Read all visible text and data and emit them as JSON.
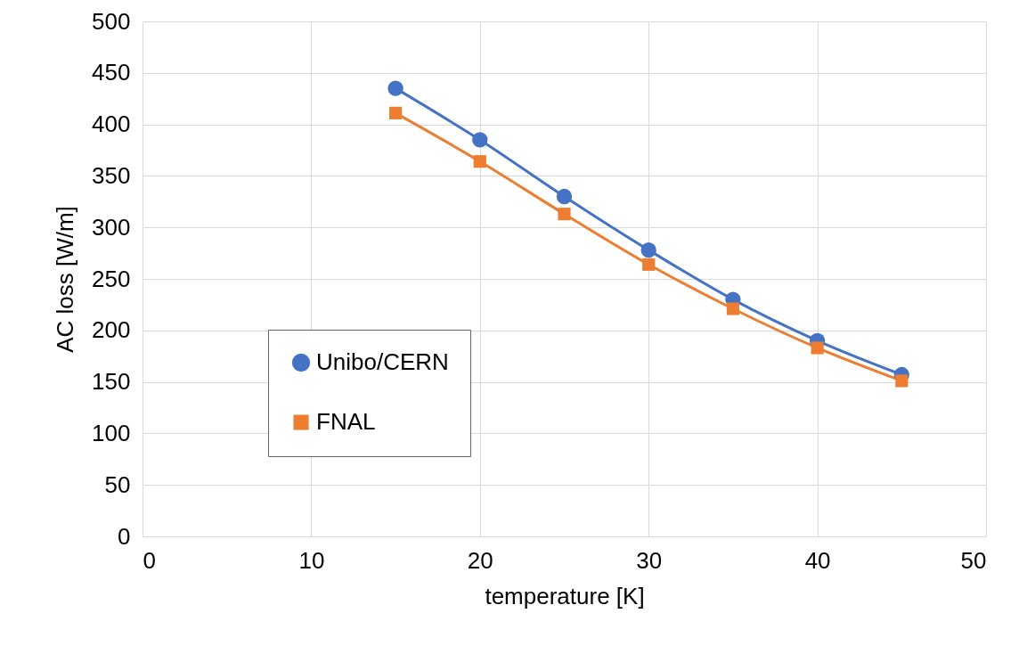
{
  "chart_data": {
    "type": "line",
    "xlabel": "temperature [K]",
    "ylabel": "AC loss [W/m]",
    "x": [
      15,
      20,
      25,
      30,
      35,
      40,
      45
    ],
    "series": [
      {
        "name": "Unibo/CERN",
        "color": "#4472c4",
        "marker": "circle",
        "values": [
          435,
          385,
          330,
          278,
          230,
          190,
          157
        ]
      },
      {
        "name": "FNAL",
        "color": "#ed7d31",
        "marker": "square",
        "values": [
          411,
          364,
          313,
          264,
          221,
          183,
          151
        ]
      }
    ],
    "xlim": [
      0,
      50
    ],
    "xticks": [
      0,
      10,
      20,
      30,
      40,
      50
    ],
    "ylim": [
      0,
      500
    ],
    "yticks": [
      0,
      50,
      100,
      150,
      200,
      250,
      300,
      350,
      400,
      450,
      500
    ],
    "grid": true,
    "legend": "left",
    "line_style": "solid"
  }
}
